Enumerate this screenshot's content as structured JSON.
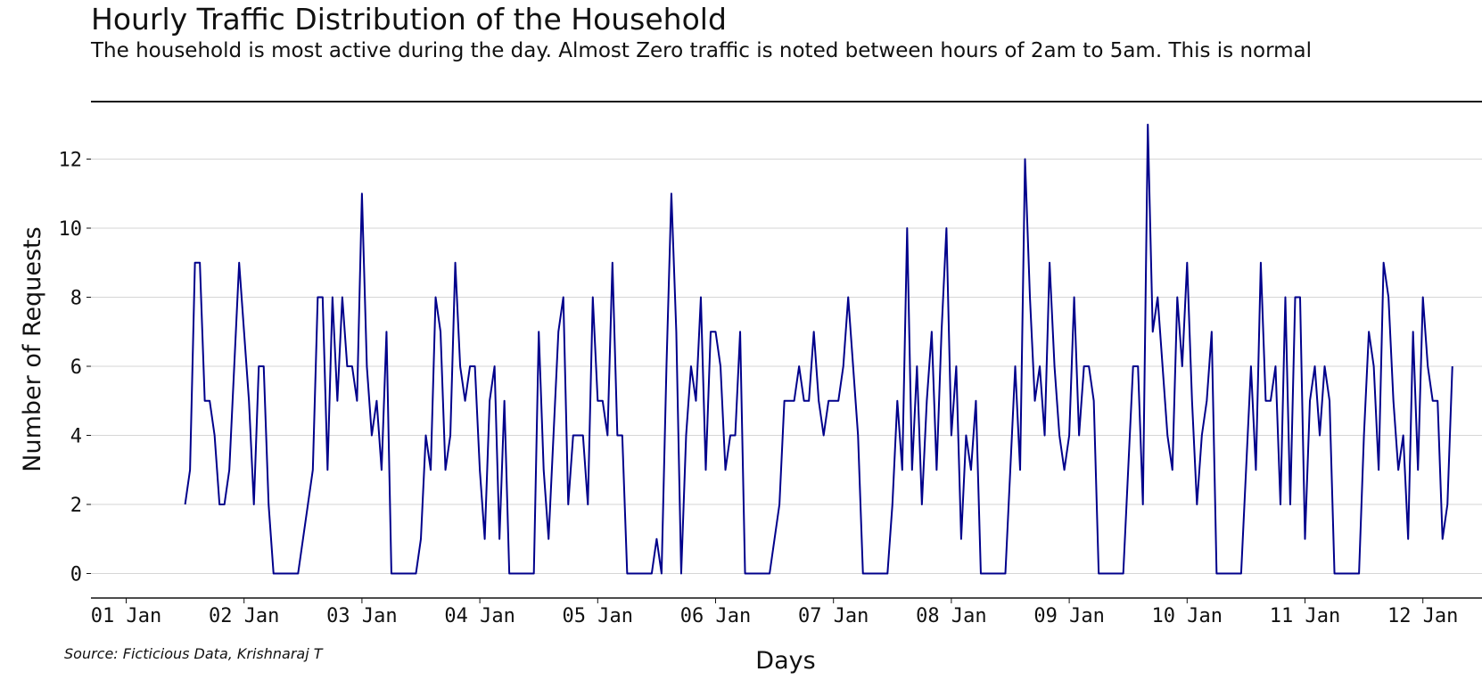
{
  "chart_data": {
    "type": "line",
    "title": "Hourly Traffic Distribution of the Household",
    "subtitle": "The household is most active during the day. Almost Zero traffic is noted between hours of 2am to 5am. This is normal",
    "xlabel": "Days",
    "ylabel": "Number of Requests",
    "source": "Source: Ficticious Data, Krishnaraj T",
    "x_start": "2021-01-01T12:00",
    "x_step_hours": 1,
    "xlim": [
      "2021-01-01T00:00",
      "2021-01-12T06:00"
    ],
    "ylim": [
      -0.7,
      13
    ],
    "y_ticks": [
      0,
      2,
      4,
      6,
      8,
      10,
      12
    ],
    "x_ticks": [
      "01 Jan",
      "02 Jan",
      "03 Jan",
      "04 Jan",
      "05 Jan",
      "06 Jan",
      "07 Jan",
      "08 Jan",
      "09 Jan",
      "10 Jan",
      "11 Jan",
      "12 Jan"
    ],
    "grid": "horizontal",
    "series": [
      {
        "color": "#00008b",
        "values": [
          2,
          3,
          9,
          9,
          5,
          5,
          4,
          2,
          2,
          3,
          6,
          9,
          7,
          5,
          2,
          6,
          6,
          2,
          0,
          0,
          0,
          0,
          0,
          0,
          1,
          2,
          3,
          8,
          8,
          3,
          8,
          5,
          8,
          6,
          6,
          5,
          11,
          6,
          4,
          5,
          3,
          7,
          0,
          0,
          0,
          0,
          0,
          0,
          1,
          4,
          3,
          8,
          7,
          3,
          4,
          9,
          6,
          5,
          6,
          6,
          3,
          1,
          5,
          6,
          1,
          5,
          0,
          0,
          0,
          0,
          0,
          0,
          7,
          3,
          1,
          4,
          7,
          8,
          2,
          4,
          4,
          4,
          2,
          8,
          5,
          5,
          4,
          9,
          4,
          4,
          0,
          0,
          0,
          0,
          0,
          0,
          1,
          0,
          6,
          11,
          7,
          0,
          4,
          6,
          5,
          8,
          3,
          7,
          7,
          6,
          3,
          4,
          4,
          7,
          0,
          0,
          0,
          0,
          0,
          0,
          1,
          2,
          5,
          5,
          5,
          6,
          5,
          5,
          7,
          5,
          4,
          5,
          5,
          5,
          6,
          8,
          6,
          4,
          0,
          0,
          0,
          0,
          0,
          0,
          2,
          5,
          3,
          10,
          3,
          6,
          2,
          5,
          7,
          3,
          7,
          10,
          4,
          6,
          1,
          4,
          3,
          5,
          0,
          0,
          0,
          0,
          0,
          0,
          3,
          6,
          3,
          12,
          8,
          5,
          6,
          4,
          9,
          6,
          4,
          3,
          4,
          8,
          4,
          6,
          6,
          5,
          0,
          0,
          0,
          0,
          0,
          0,
          3,
          6,
          6,
          2,
          13,
          7,
          8,
          6,
          4,
          3,
          8,
          6,
          9,
          5,
          2,
          4,
          5,
          7,
          0,
          0,
          0,
          0,
          0,
          0,
          3,
          6,
          3,
          9,
          5,
          5,
          6,
          2,
          8,
          2,
          8,
          8,
          1,
          5,
          6,
          4,
          6,
          5,
          0,
          0,
          0,
          0,
          0,
          0,
          4,
          7,
          6,
          3,
          9,
          8,
          5,
          3,
          4,
          1,
          7,
          3,
          8,
          6,
          5,
          5,
          1,
          2,
          6
        ]
      }
    ]
  }
}
